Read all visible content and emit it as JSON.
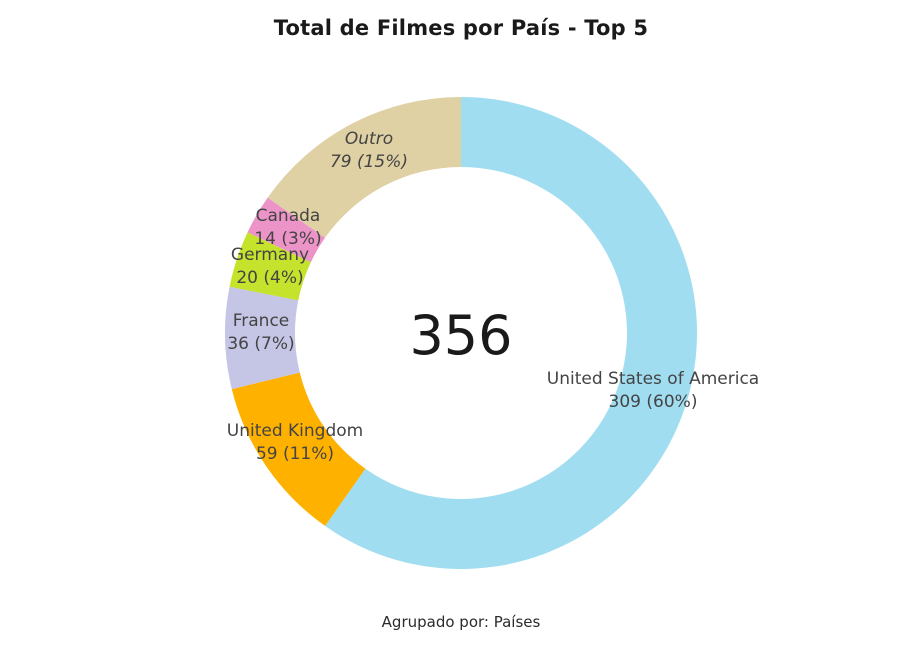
{
  "chart_data": {
    "type": "pie",
    "title": "Total de Filmes por País - Top 5",
    "subtitle": "Agrupado por: Países",
    "center_total": "356",
    "slices": [
      {
        "category": "United States of America",
        "value": 309,
        "percent": "60%",
        "color": "#a0ddf0"
      },
      {
        "category": "United Kingdom",
        "value": 59,
        "percent": "11%",
        "color": "#ffb100"
      },
      {
        "category": "France",
        "value": 36,
        "percent": "7%",
        "color": "#c5c5e6"
      },
      {
        "category": "Germany",
        "value": 20,
        "percent": "4%",
        "color": "#c5e22c"
      },
      {
        "category": "Canada",
        "value": 14,
        "percent": "3%",
        "color": "#ec93c7"
      },
      {
        "category": "Outro",
        "value": 79,
        "percent": "15%",
        "color": "#dfd1a4"
      }
    ]
  }
}
